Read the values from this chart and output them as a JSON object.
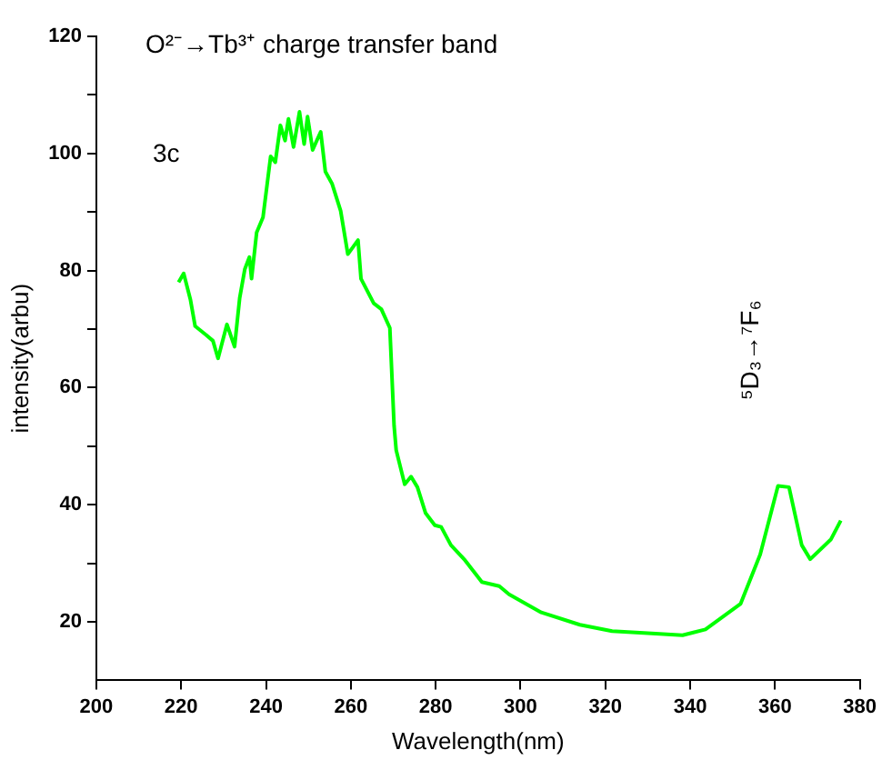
{
  "chart_data": {
    "type": "line",
    "xlabel": "Wavelength(nm)",
    "ylabel": "intensity(arbu)",
    "annotations": [
      "O²⁻→Tb³⁺ charge transfer band",
      "3c",
      "⁵D₃→⁷F₆"
    ],
    "xlim": [
      200,
      380
    ],
    "xticks": [
      200,
      220,
      240,
      260,
      280,
      300,
      320,
      340,
      360,
      380
    ],
    "ylim": [
      10,
      120
    ],
    "yticks": [
      20,
      {
        "value": 30,
        "label": null
      },
      40,
      {
        "value": 50,
        "label": null
      },
      60,
      {
        "value": 70,
        "label": null
      },
      80,
      {
        "value": 90,
        "label": null
      },
      100,
      {
        "value": 110,
        "label": null
      },
      120
    ],
    "grid": false,
    "legend": false,
    "marker": "none",
    "line_style": "solid",
    "series": [
      {
        "color": "#00ff00",
        "x": [
          219.4,
          220.6,
          222.2,
          223.3,
          225.9,
          227.5,
          228.7,
          230.8,
          232.6,
          233.8,
          235,
          236.1,
          236.6,
          237.8,
          239.3,
          241.1,
          242.2,
          243.4,
          244.5,
          245.3,
          246.5,
          247.9,
          249,
          249.8,
          251,
          252.9,
          254,
          255.6,
          257.6,
          259.3,
          261.7,
          262.4,
          265.4,
          267.2,
          269.2,
          270.2,
          270.7,
          272.7,
          274.2,
          275.7,
          277.6,
          279.8,
          281.3,
          283.6,
          286.7,
          290.9,
          295,
          297.3,
          304.9,
          314,
          321.6,
          329.1,
          338.2,
          343.6,
          351.9,
          356.5,
          360.7,
          363.3,
          366.3,
          368.3,
          373.2,
          375.5
        ],
        "values": [
          78,
          79.5,
          75,
          70.5,
          69,
          68,
          65,
          70.8,
          67,
          75.3,
          80.2,
          82.3,
          78.6,
          86.5,
          89.1,
          99.5,
          98.5,
          104.8,
          102.2,
          105.9,
          101.1,
          107.1,
          101.6,
          106.3,
          100.6,
          103.7,
          96.9,
          94.8,
          90.2,
          82.8,
          85.2,
          78.6,
          74.4,
          73.4,
          70.2,
          53.5,
          49.3,
          43.5,
          44.8,
          43,
          38.6,
          36.5,
          36.2,
          33.1,
          30.7,
          26.8,
          26.1,
          24.7,
          21.6,
          19.5,
          18.4,
          18.1,
          17.7,
          18.7,
          23.1,
          31.5,
          43.2,
          43,
          33.1,
          30.7,
          34.1,
          37.3
        ]
      }
    ]
  }
}
